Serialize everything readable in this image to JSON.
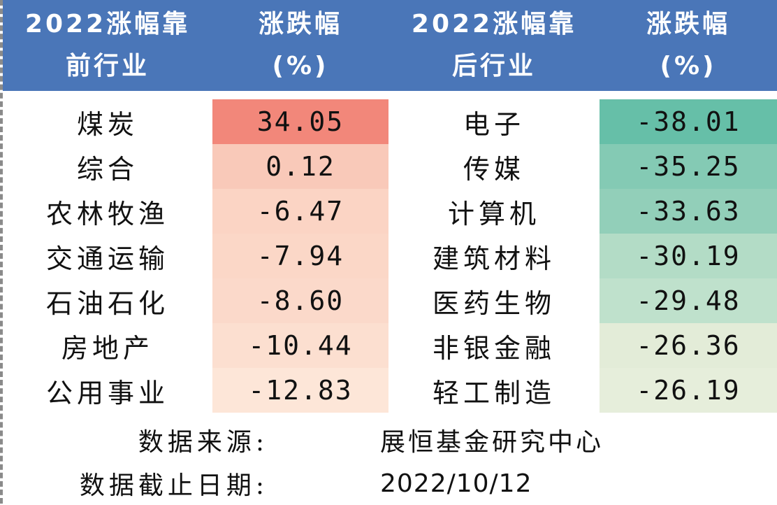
{
  "headers": {
    "col1_line1": "2022涨幅靠",
    "col1_line2": "前行业",
    "col2_line1": "涨跌幅",
    "col2_line2": "(%)",
    "col3_line1": "2022涨幅靠",
    "col3_line2": "后行业",
    "col4_line1": "涨跌幅",
    "col4_line2": "(%)"
  },
  "rows": [
    {
      "top_name": "煤炭",
      "top_value": "34.05",
      "top_color": "#f2877a",
      "bottom_name": "电子",
      "bottom_value": "-38.01",
      "bottom_color": "#66bfa8"
    },
    {
      "top_name": "综合",
      "top_value": "0.12",
      "top_color": "#f9c9b9",
      "bottom_name": "传媒",
      "bottom_value": "-35.25",
      "bottom_color": "#84cab4"
    },
    {
      "top_name": "农林牧渔",
      "top_value": "-6.47",
      "top_color": "#fbd4c4",
      "bottom_name": "计算机",
      "bottom_value": "-33.63",
      "bottom_color": "#92cfb9"
    },
    {
      "top_name": "交通运输",
      "top_value": "-7.94",
      "top_color": "#fbd7c7",
      "bottom_name": "建筑材料",
      "bottom_value": "-30.19",
      "bottom_color": "#b3dcc6"
    },
    {
      "top_name": "石油石化",
      "top_value": "-8.60",
      "top_color": "#fbd9ca",
      "bottom_name": "医药生物",
      "bottom_value": "-29.48",
      "bottom_color": "#bfe1cc"
    },
    {
      "top_name": "房地产",
      "top_value": "-10.44",
      "top_color": "#fcdfd0",
      "bottom_name": "非银金融",
      "bottom_value": "-26.36",
      "bottom_color": "#e3ecd8"
    },
    {
      "top_name": "公用事业",
      "top_value": "-12.83",
      "top_color": "#fde6d8",
      "bottom_name": "轻工制造",
      "bottom_value": "-26.19",
      "bottom_color": "#e6eedb"
    }
  ],
  "footer": {
    "source_label": "数据来源:",
    "source_value": "展恒基金研究中心",
    "date_label": "数据截止日期:",
    "date_value": "2022/10/12"
  }
}
